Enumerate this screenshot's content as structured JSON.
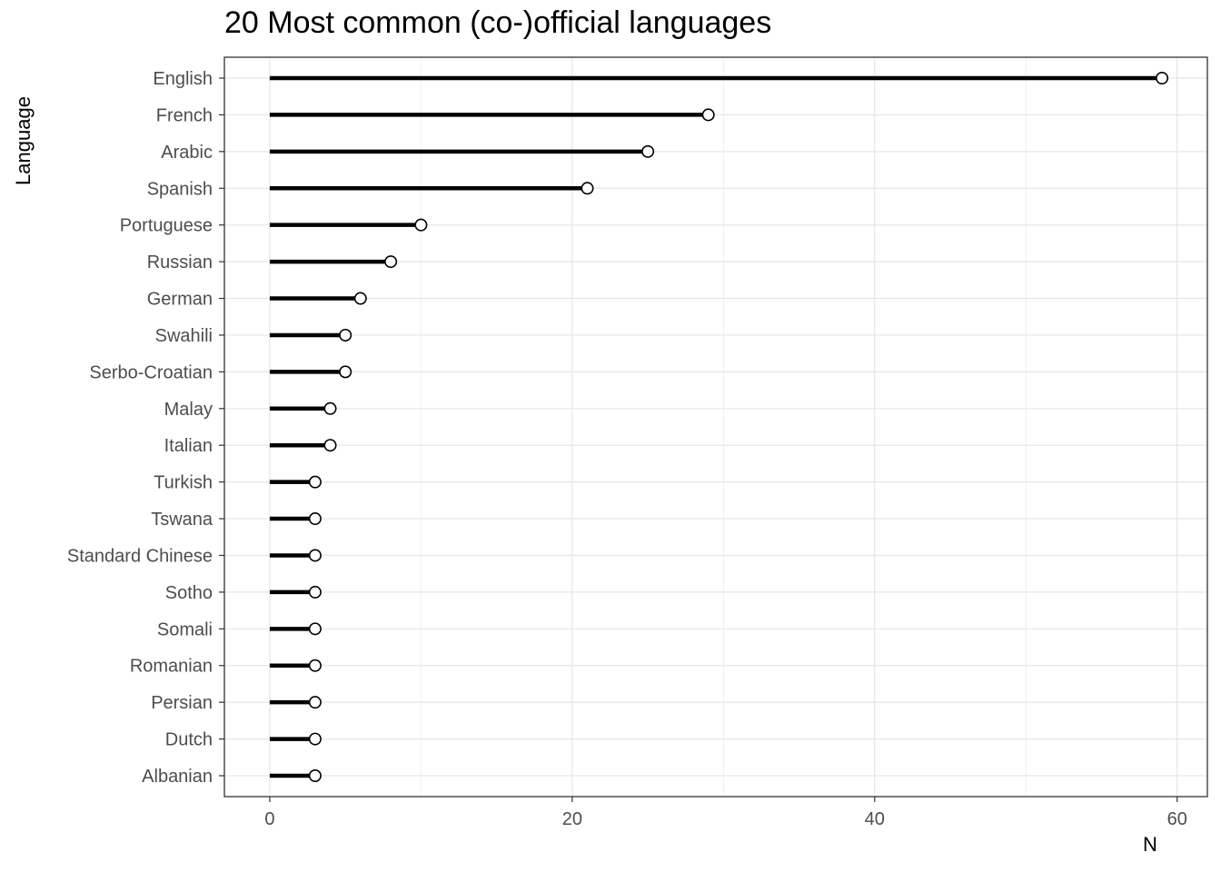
{
  "chart_data": {
    "type": "lollipop",
    "title": "20 Most common (co-)official languages",
    "xlabel": "N",
    "ylabel": "Language",
    "xlim": [
      -3,
      62
    ],
    "xticks": [
      0,
      20,
      40,
      60
    ],
    "grid": true,
    "categories": [
      "English",
      "French",
      "Arabic",
      "Spanish",
      "Portuguese",
      "Russian",
      "German",
      "Swahili",
      "Serbo-Croatian",
      "Malay",
      "Italian",
      "Turkish",
      "Tswana",
      "Standard Chinese",
      "Sotho",
      "Somali",
      "Romanian",
      "Persian",
      "Dutch",
      "Albanian"
    ],
    "values": [
      59,
      29,
      25,
      21,
      10,
      8,
      6,
      5,
      5,
      4,
      4,
      3,
      3,
      3,
      3,
      3,
      3,
      3,
      3,
      3
    ]
  }
}
